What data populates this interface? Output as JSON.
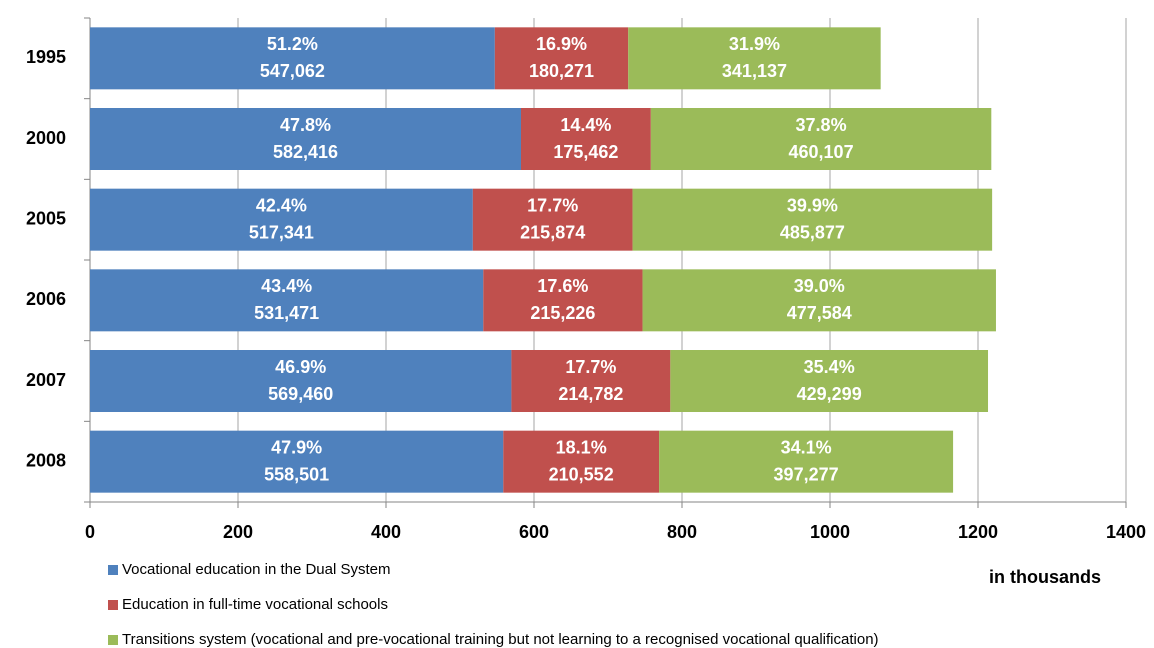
{
  "chart_data": {
    "type": "stacked-bar-horizontal",
    "x_label": "in thousands",
    "categories": [
      "1995",
      "2000",
      "2005",
      "2006",
      "2007",
      "2008"
    ],
    "series": [
      {
        "name": "Vocational education in the Dual System",
        "color": "#4f81bd",
        "values": [
          547.062,
          582.416,
          517.341,
          531.471,
          569.46,
          558.501
        ],
        "value_labels": [
          "547,062",
          "582,416",
          "517,341",
          "531,471",
          "569,460",
          "558,501"
        ],
        "share_labels": [
          "51.2%",
          "47.8%",
          "42.4%",
          "43.4%",
          "46.9%",
          "47.9%"
        ]
      },
      {
        "name": "Education in full-time vocational schools",
        "color": "#c0504d",
        "values": [
          180.271,
          175.462,
          215.874,
          215.226,
          214.782,
          210.552
        ],
        "value_labels": [
          "180,271",
          "175,462",
          "215,874",
          "215,226",
          "214,782",
          "210,552"
        ],
        "share_labels": [
          "16.9%",
          "14.4%",
          "17.7%",
          "17.6%",
          "17.7%",
          "18.1%"
        ]
      },
      {
        "name": "Transitions system (vocational and pre-vocational training but not learning to a recognised vocational qualification)",
        "color": "#9bbb59",
        "values": [
          341.137,
          460.107,
          485.877,
          477.584,
          429.299,
          397.277
        ],
        "value_labels": [
          "341,137",
          "460,107",
          "485,877",
          "477,584",
          "429,299",
          "397,277"
        ],
        "share_labels": [
          "31.9%",
          "37.8%",
          "39.9%",
          "39.0%",
          "35.4%",
          "34.1%"
        ]
      }
    ],
    "xlim": [
      0,
      1400
    ],
    "xticks": [
      0,
      200,
      400,
      600,
      800,
      1000,
      1200,
      1400
    ],
    "grid": true
  }
}
